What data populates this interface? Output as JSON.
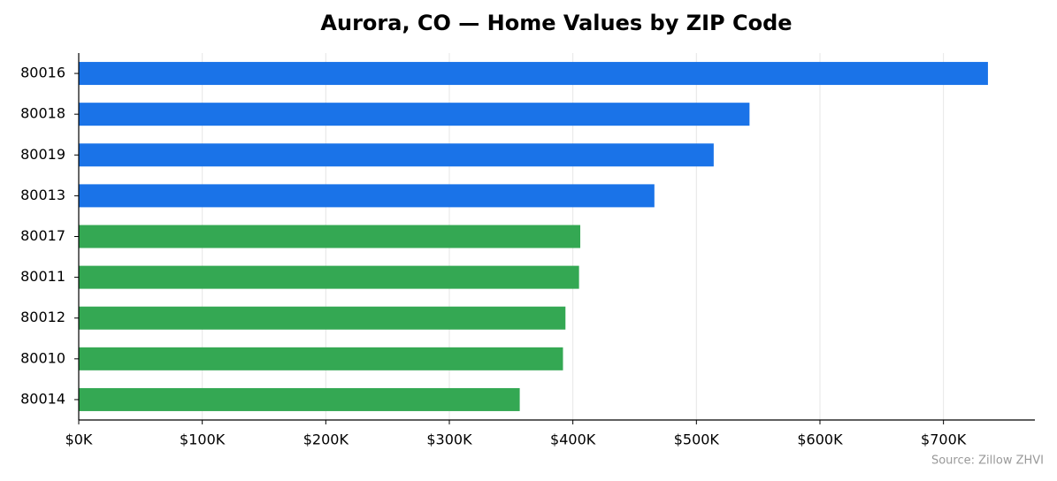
{
  "chart_data": {
    "type": "barh",
    "title": "Aurora, CO — Home Values by ZIP Code",
    "source": "Source: Zillow ZHVI",
    "categories": [
      "80016",
      "80018",
      "80019",
      "80013",
      "80017",
      "80011",
      "80012",
      "80010",
      "80014"
    ],
    "values": [
      736000,
      543000,
      514000,
      466000,
      406000,
      405000,
      394000,
      392000,
      357000
    ],
    "colors": [
      "#1a73e8",
      "#1a73e8",
      "#1a73e8",
      "#1a73e8",
      "#34a853",
      "#34a853",
      "#34a853",
      "#34a853",
      "#34a853"
    ],
    "xlim": [
      0,
      774000
    ],
    "xticks": [
      {
        "value": 0,
        "label": "$0K"
      },
      {
        "value": 100000,
        "label": "$100K"
      },
      {
        "value": 200000,
        "label": "$200K"
      },
      {
        "value": 300000,
        "label": "$300K"
      },
      {
        "value": 400000,
        "label": "$400K"
      },
      {
        "value": 500000,
        "label": "$500K"
      },
      {
        "value": 600000,
        "label": "$600K"
      },
      {
        "value": 700000,
        "label": "$700K"
      }
    ],
    "grid": true
  }
}
